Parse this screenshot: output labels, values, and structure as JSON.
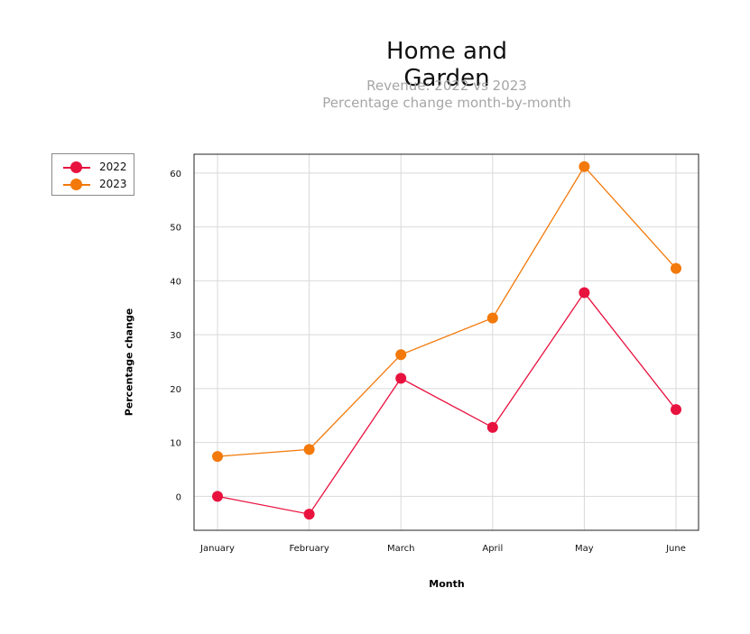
{
  "chart_data": {
    "type": "line",
    "title": "Home and Garden",
    "subtitle": [
      "Revenue: 2022 vs 2023",
      "Percentage change month-by-month"
    ],
    "xlabel": "Month",
    "ylabel": "Percentage change",
    "categories": [
      "January",
      "February",
      "March",
      "April",
      "May",
      "June"
    ],
    "y_ticks": [
      0,
      10,
      20,
      30,
      40,
      50,
      60
    ],
    "ylim": [
      -6.3,
      63.5
    ],
    "grid": true,
    "legend_position": "top-left, outside plot",
    "series": [
      {
        "name": "2022",
        "color": "#e8123f",
        "values": [
          0,
          -3.3,
          21.9,
          12.8,
          37.8,
          16.1
        ]
      },
      {
        "name": "2023",
        "color": "#f2790a",
        "values": [
          7.4,
          8.7,
          26.3,
          33.1,
          61.2,
          42.3
        ]
      }
    ]
  }
}
